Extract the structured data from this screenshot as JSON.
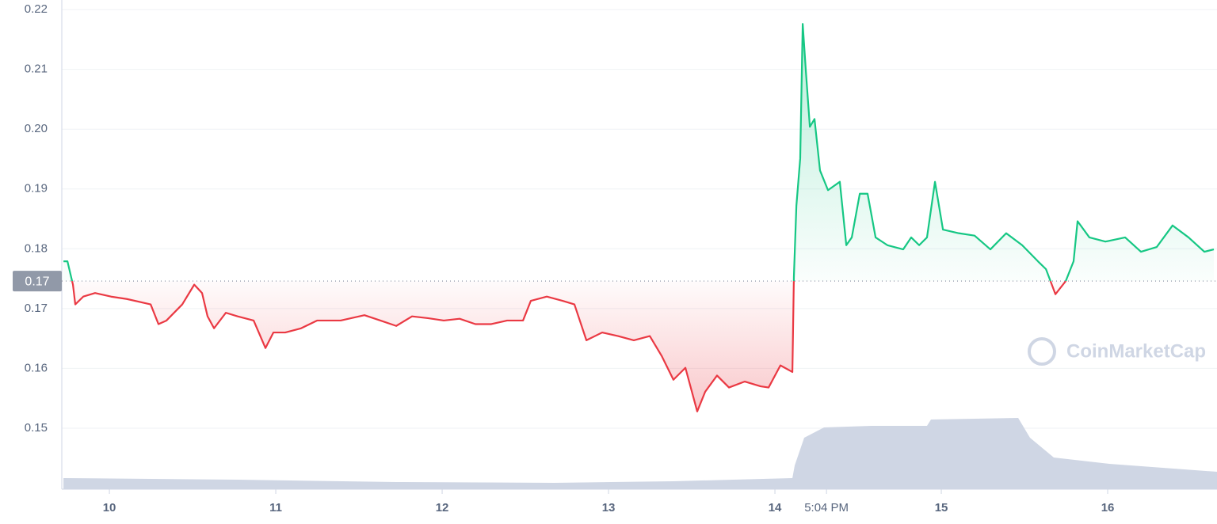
{
  "chart_data": {
    "type": "line",
    "x": [
      9.724,
      9.748,
      9.781,
      9.795,
      9.843,
      9.914,
      10.01,
      10.105,
      10.248,
      10.295,
      10.343,
      10.438,
      10.51,
      10.557,
      10.59,
      10.629,
      10.7,
      10.771,
      10.867,
      10.938,
      10.986,
      11.057,
      11.152,
      11.248,
      11.39,
      11.533,
      11.629,
      11.724,
      11.819,
      11.914,
      12.01,
      12.105,
      12.2,
      12.295,
      12.39,
      12.486,
      12.533,
      12.629,
      12.724,
      12.795,
      12.867,
      12.962,
      13.057,
      13.152,
      13.248,
      13.319,
      13.39,
      13.462,
      13.533,
      13.581,
      13.652,
      13.724,
      13.819,
      13.914,
      13.962,
      14.033,
      14.105,
      14.114,
      14.129,
      14.152,
      14.167,
      14.186,
      14.21,
      14.238,
      14.271,
      14.319,
      14.39,
      14.429,
      14.462,
      14.51,
      14.557,
      14.605,
      14.676,
      14.771,
      14.819,
      14.867,
      14.914,
      14.962,
      15.01,
      15.105,
      15.2,
      15.295,
      15.39,
      15.486,
      15.581,
      15.629,
      15.686,
      15.748,
      15.795,
      15.819,
      15.89,
      15.986,
      16.105,
      16.2,
      16.295,
      16.39,
      16.486,
      16.581,
      16.638
    ],
    "values": [
      0.1779,
      0.1779,
      0.174,
      0.1707,
      0.172,
      0.1726,
      0.172,
      0.1716,
      0.1707,
      0.1674,
      0.168,
      0.1707,
      0.174,
      0.1726,
      0.1687,
      0.1667,
      0.1693,
      0.1687,
      0.168,
      0.1634,
      0.166,
      0.166,
      0.1667,
      0.168,
      0.168,
      0.1689,
      0.168,
      0.1671,
      0.1687,
      0.1684,
      0.168,
      0.1683,
      0.1674,
      0.1674,
      0.168,
      0.168,
      0.1713,
      0.172,
      0.1713,
      0.1707,
      0.1647,
      0.166,
      0.1654,
      0.1647,
      0.1654,
      0.1621,
      0.1581,
      0.1601,
      0.1528,
      0.1561,
      0.1588,
      0.1568,
      0.1578,
      0.157,
      0.1568,
      0.1605,
      0.1594,
      0.1753,
      0.1872,
      0.1951,
      0.2176,
      0.2097,
      0.2004,
      0.2017,
      0.1931,
      0.1898,
      0.1912,
      0.1806,
      0.1819,
      0.1892,
      0.1892,
      0.1819,
      0.1806,
      0.1799,
      0.1819,
      0.1806,
      0.1819,
      0.1912,
      0.1832,
      0.1826,
      0.1822,
      0.1799,
      0.1826,
      0.1806,
      0.1779,
      0.1766,
      0.1724,
      0.1746,
      0.1779,
      0.1846,
      0.1819,
      0.1812,
      0.1819,
      0.1795,
      0.1803,
      0.1839,
      0.1819,
      0.1795,
      0.1799
    ],
    "up_color": "#16c784",
    "down_color": "#ea3943",
    "reference": {
      "value": 0.1746,
      "label": "0.17"
    },
    "volume": {
      "x": [
        9.724,
        10.771,
        11.724,
        12.676,
        13.39,
        14.105,
        14.119,
        14.176,
        14.295,
        14.581,
        14.914,
        14.938,
        15.462,
        15.533,
        15.676,
        16.01,
        16.657
      ],
      "values": [
        7,
        6,
        4.5,
        4,
        5,
        7,
        15,
        32.5,
        39,
        40,
        40,
        44,
        45,
        32.5,
        20,
        16,
        11
      ],
      "color": "#cfd6e4"
    },
    "vlim": [
      0,
      100
    ],
    "xlim": [
      9.714,
      16.657
    ],
    "ylim": [
      0.1398,
      0.2216
    ],
    "xticks": [
      10,
      11,
      12,
      13,
      14,
      {
        "value": 14.31,
        "label": "5:04 PM"
      },
      15,
      16
    ],
    "yticks": [
      0.15,
      0.16,
      0.17,
      0.18,
      0.19,
      {
        "value": 0.2,
        "label": "0.20"
      },
      0.21,
      0.22
    ],
    "grid": true,
    "watermark": "CoinMarketCap"
  }
}
